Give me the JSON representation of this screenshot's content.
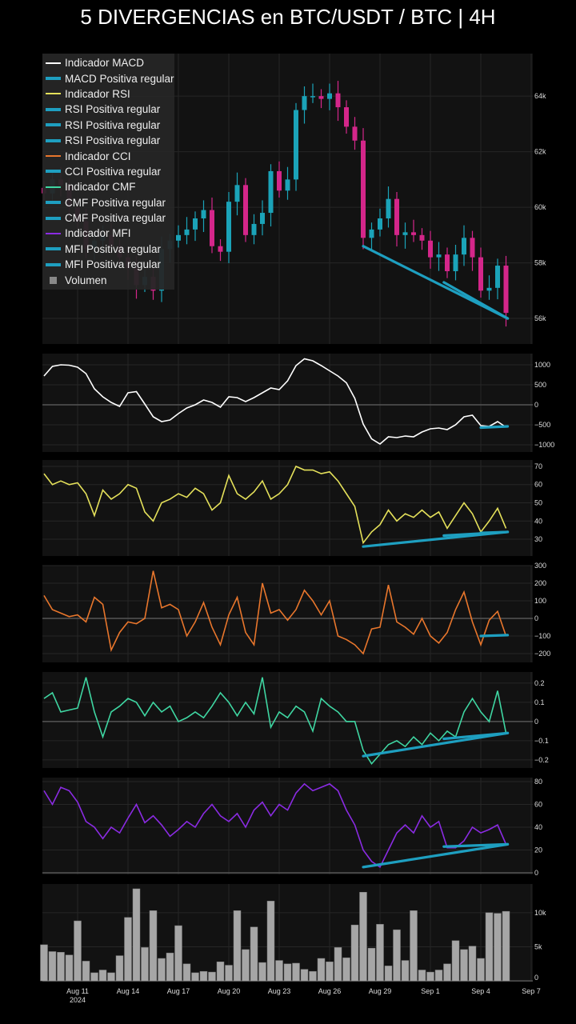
{
  "title": "5 DIVERGENCIAS en BTC/USDT / BTC | 4H",
  "colors": {
    "bull": "#1ba3b8",
    "bear": "#d4268a",
    "macd": "#ffffff",
    "rsi": "#e4e05a",
    "cci": "#e8762c",
    "cmf": "#3fd6a2",
    "mfi": "#8a2be2",
    "divergence": "#1e9fc0",
    "volume": "#a6a6a6",
    "panel": "#121212",
    "grid": "#262626"
  },
  "legend": [
    {
      "label": "Indicador MACD",
      "color": "#ffffff",
      "kind": "thin"
    },
    {
      "label": "MACD Positiva regular",
      "color": "#1e9fc0",
      "kind": "thick"
    },
    {
      "label": "Indicador RSI",
      "color": "#e4e05a",
      "kind": "thin"
    },
    {
      "label": "RSI Positiva regular",
      "color": "#1e9fc0",
      "kind": "thick"
    },
    {
      "label": "RSI Positiva regular",
      "color": "#1e9fc0",
      "kind": "thick"
    },
    {
      "label": "RSI Positiva regular",
      "color": "#1e9fc0",
      "kind": "thick"
    },
    {
      "label": "Indicador CCI",
      "color": "#e8762c",
      "kind": "thin"
    },
    {
      "label": "CCI Positiva regular",
      "color": "#1e9fc0",
      "kind": "thick"
    },
    {
      "label": "Indicador CMF",
      "color": "#3fd6a2",
      "kind": "thin"
    },
    {
      "label": "CMF Positiva regular",
      "color": "#1e9fc0",
      "kind": "thick"
    },
    {
      "label": "CMF Positiva regular",
      "color": "#1e9fc0",
      "kind": "thick"
    },
    {
      "label": "Indicador MFI",
      "color": "#8a2be2",
      "kind": "thin"
    },
    {
      "label": "MFI Positiva regular",
      "color": "#1e9fc0",
      "kind": "thick"
    },
    {
      "label": "MFI Positiva regular",
      "color": "#1e9fc0",
      "kind": "thick"
    },
    {
      "label": "Volumen",
      "color": "#888888",
      "kind": "box"
    }
  ],
  "chart_data": {
    "type": "candlestick+line",
    "x_unit": "days since Aug 9 2024 00:00, 12h steps",
    "x_start": 0,
    "x_step": 0.5,
    "x_ticks": [
      {
        "d": 2,
        "label": "Aug 11",
        "sub": "2024"
      },
      {
        "d": 5,
        "label": "Aug 14"
      },
      {
        "d": 8,
        "label": "Aug 17"
      },
      {
        "d": 11,
        "label": "Aug 20"
      },
      {
        "d": 14,
        "label": "Aug 23"
      },
      {
        "d": 17,
        "label": "Aug 26"
      },
      {
        "d": 20,
        "label": "Aug 29"
      },
      {
        "d": 23,
        "label": "Sep 1"
      },
      {
        "d": 26,
        "label": "Sep 4"
      },
      {
        "d": 29,
        "label": "Sep 7"
      }
    ],
    "panels": [
      {
        "key": "price",
        "name": "BTC/USDT",
        "ylim": [
          55.08,
          65.53
        ],
        "ticks": [
          {
            "v": 56,
            "label": "56k"
          },
          {
            "v": 58,
            "label": "58k"
          },
          {
            "v": 60,
            "label": "60k"
          },
          {
            "v": 62,
            "label": "62k"
          },
          {
            "v": 64,
            "label": "64k"
          }
        ],
        "close": [
          60.5,
          61.0,
          60.8,
          60.0,
          59.5,
          58.5,
          58.8,
          59.0,
          58.6,
          58.2,
          57.8,
          57.2,
          57.5,
          57.0,
          58.5,
          58.8,
          59.0,
          59.2,
          59.6,
          59.9,
          58.6,
          58.4,
          60.2,
          60.8,
          59.0,
          59.4,
          59.8,
          61.3,
          60.6,
          61.0,
          63.5,
          64.0,
          64.0,
          63.9,
          64.1,
          63.6,
          62.9,
          62.4,
          58.9,
          59.2,
          59.6,
          60.3,
          59.0,
          59.1,
          59.0,
          58.8,
          58.2,
          58.3,
          57.7,
          58.3,
          58.9,
          58.2,
          57.0,
          57.1,
          57.9,
          56.2
        ],
        "divergences": [
          [
            [
              19.0,
              58.6
            ],
            [
              27.6,
              56.0
            ]
          ],
          [
            [
              23.8,
              57.3
            ],
            [
              27.6,
              56.0
            ]
          ]
        ]
      },
      {
        "key": "macd",
        "name": "MACD",
        "ylim": [
          -1180,
          1280
        ],
        "zero": true,
        "ticks": [
          {
            "v": -1000,
            "label": "−1000"
          },
          {
            "v": -500,
            "label": "−500"
          },
          {
            "v": 0,
            "label": "0"
          },
          {
            "v": 500,
            "label": "500"
          },
          {
            "v": 1000,
            "label": "1000"
          }
        ],
        "values": [
          720,
          960,
          1000,
          990,
          940,
          780,
          400,
          200,
          60,
          -40,
          300,
          330,
          20,
          -300,
          -420,
          -380,
          -220,
          -80,
          0,
          120,
          60,
          -60,
          200,
          180,
          80,
          180,
          300,
          420,
          380,
          600,
          980,
          1150,
          1100,
          980,
          850,
          720,
          550,
          160,
          -480,
          -850,
          -980,
          -800,
          -820,
          -780,
          -800,
          -680,
          -600,
          -580,
          -620,
          -500,
          -300,
          -260,
          -520,
          -540,
          -420,
          -560
        ],
        "divergences": [
          [
            [
              26.0,
              -570
            ],
            [
              27.6,
              -540
            ]
          ]
        ]
      },
      {
        "key": "rsi",
        "name": "RSI",
        "ylim": [
          20.8,
          73.5
        ],
        "ticks": [
          {
            "v": 30,
            "label": "30"
          },
          {
            "v": 40,
            "label": "40"
          },
          {
            "v": 50,
            "label": "50"
          },
          {
            "v": 60,
            "label": "60"
          },
          {
            "v": 70,
            "label": "70"
          }
        ],
        "values": [
          66,
          60,
          62,
          60,
          61,
          55,
          43,
          57,
          52,
          55,
          60,
          58,
          45,
          40,
          50,
          52,
          55,
          53,
          58,
          55,
          46,
          50,
          65,
          55,
          52,
          56,
          62,
          52,
          55,
          60,
          70,
          68,
          68,
          66,
          67,
          62,
          55,
          48,
          28,
          34,
          38,
          46,
          40,
          44,
          42,
          46,
          42,
          45,
          36,
          43,
          50,
          44,
          34,
          40,
          47,
          36
        ],
        "divergences": [
          [
            [
              19.0,
              26
            ],
            [
              27.6,
              34
            ]
          ],
          [
            [
              23.8,
              32
            ],
            [
              27.6,
              34
            ]
          ],
          [
            [
              26.0,
              33.5
            ],
            [
              27.6,
              34
            ]
          ]
        ]
      },
      {
        "key": "cci",
        "name": "CCI",
        "ylim": [
          -250,
          300
        ],
        "zero": true,
        "ticks": [
          {
            "v": -200,
            "label": "−200"
          },
          {
            "v": -100,
            "label": "−100"
          },
          {
            "v": 0,
            "label": "0"
          },
          {
            "v": 100,
            "label": "100"
          },
          {
            "v": 200,
            "label": "200"
          },
          {
            "v": 300,
            "label": "300"
          }
        ],
        "values": [
          130,
          50,
          30,
          10,
          20,
          -20,
          120,
          80,
          -180,
          -80,
          -20,
          -30,
          0,
          270,
          60,
          80,
          50,
          -100,
          -20,
          90,
          -50,
          -150,
          20,
          120,
          -80,
          -150,
          200,
          30,
          50,
          -10,
          50,
          160,
          100,
          20,
          100,
          -100,
          -120,
          -150,
          -200,
          -60,
          -50,
          190,
          -20,
          -50,
          -90,
          0,
          -100,
          -140,
          -80,
          50,
          150,
          -20,
          -150,
          -10,
          40,
          -100
        ],
        "divergences": [
          [
            [
              26.0,
              -100
            ],
            [
              27.6,
              -95
            ]
          ]
        ]
      },
      {
        "key": "cmf",
        "name": "CMF",
        "ylim": [
          -0.242,
          0.258
        ],
        "zero": true,
        "ticks": [
          {
            "v": -0.2,
            "label": "−0.2"
          },
          {
            "v": -0.1,
            "label": "−0.1"
          },
          {
            "v": 0,
            "label": "0"
          },
          {
            "v": 0.1,
            "label": "0.1"
          },
          {
            "v": 0.2,
            "label": "0.2"
          }
        ],
        "values": [
          0.12,
          0.15,
          0.05,
          0.06,
          0.07,
          0.23,
          0.05,
          -0.08,
          0.05,
          0.08,
          0.12,
          0.1,
          0.03,
          0.1,
          0.05,
          0.08,
          0.0,
          0.02,
          0.05,
          0.02,
          0.08,
          0.15,
          0.1,
          0.03,
          0.1,
          0.04,
          0.23,
          -0.03,
          0.05,
          0.02,
          0.08,
          0.05,
          -0.05,
          0.12,
          0.08,
          0.05,
          0.0,
          0.0,
          -0.15,
          -0.22,
          -0.17,
          -0.12,
          -0.1,
          -0.13,
          -0.08,
          -0.12,
          -0.06,
          -0.1,
          -0.05,
          -0.08,
          0.05,
          0.12,
          0.05,
          0.0,
          0.16,
          -0.06
        ],
        "divergences": [
          [
            [
              19.0,
              -0.18
            ],
            [
              27.6,
              -0.06
            ]
          ],
          [
            [
              23.8,
              -0.09
            ],
            [
              27.6,
              -0.06
            ]
          ]
        ]
      },
      {
        "key": "mfi",
        "name": "MFI",
        "ylim": [
          -1.4,
          83.5
        ],
        "zero": true,
        "ticks": [
          {
            "v": 0,
            "label": "0"
          },
          {
            "v": 20,
            "label": "20"
          },
          {
            "v": 40,
            "label": "40"
          },
          {
            "v": 60,
            "label": "60"
          },
          {
            "v": 80,
            "label": "80"
          }
        ],
        "values": [
          72,
          60,
          75,
          72,
          62,
          45,
          40,
          30,
          40,
          35,
          48,
          60,
          44,
          50,
          42,
          32,
          38,
          45,
          40,
          52,
          60,
          50,
          45,
          52,
          40,
          55,
          62,
          50,
          60,
          55,
          70,
          78,
          72,
          75,
          78,
          72,
          55,
          42,
          20,
          10,
          5,
          20,
          35,
          42,
          35,
          50,
          40,
          45,
          22,
          22,
          28,
          40,
          35,
          38,
          42,
          25
        ],
        "divergences": [
          [
            [
              19.0,
              5
            ],
            [
              27.6,
              25
            ]
          ],
          [
            [
              23.8,
              23
            ],
            [
              27.6,
              25
            ]
          ]
        ]
      },
      {
        "key": "volume",
        "name": "Volumen",
        "ylim": [
          -0.1,
          14.2
        ],
        "zero": true,
        "ticks": [
          {
            "v": 0,
            "label": "0"
          },
          {
            "v": 5,
            "label": "5k"
          },
          {
            "v": 10,
            "label": "10k"
          }
        ],
        "values": [
          5.3,
          4.3,
          4.2,
          3.8,
          8.8,
          2.9,
          1.2,
          1.6,
          1.2,
          3.7,
          9.3,
          13.5,
          4.9,
          10.3,
          3.3,
          4.1,
          8.1,
          2.5,
          1.2,
          1.4,
          1.3,
          2.8,
          2.3,
          10.3,
          4.6,
          7.9,
          2.7,
          11.7,
          3.0,
          2.5,
          2.6,
          1.7,
          1.4,
          3.3,
          2.8,
          4.9,
          3.4,
          8.2,
          13.0,
          4.8,
          8.3,
          2.2,
          7.5,
          3.0,
          10.3,
          1.6,
          1.3,
          1.6,
          2.5,
          5.9,
          4.6,
          5.1,
          3.3,
          10.0,
          9.9,
          10.2
        ]
      }
    ]
  }
}
